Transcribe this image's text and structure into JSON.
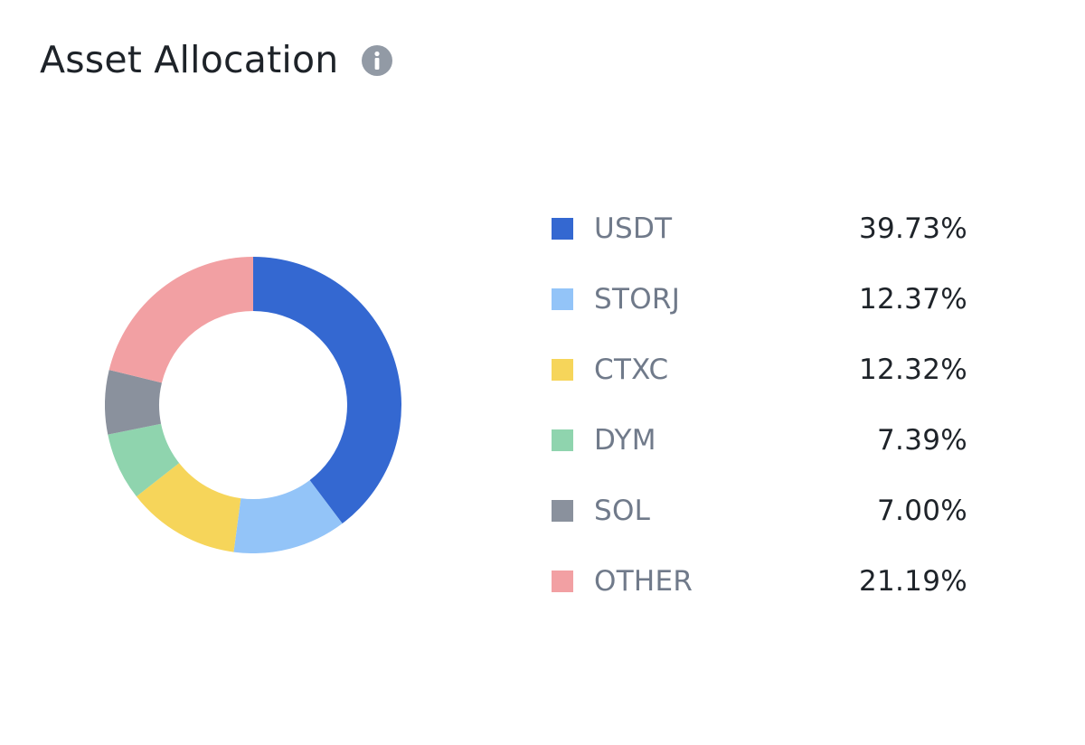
{
  "header": {
    "title": "Asset Allocation",
    "info_icon": "info-icon"
  },
  "colors": {
    "info_icon": "#929aa5",
    "hole": "#ffffff"
  },
  "chart_data": {
    "type": "pie",
    "donut": true,
    "legend_placement": "right",
    "categories": [
      "USDT",
      "STORJ",
      "CTXC",
      "DYM",
      "SOL",
      "OTHER"
    ],
    "values": [
      39.73,
      12.37,
      12.32,
      7.39,
      7.0,
      21.19
    ],
    "value_labels": [
      "39.73%",
      "12.37%",
      "12.32%",
      "7.39%",
      "7.00%",
      "21.19%"
    ],
    "colors": [
      "#3468d1",
      "#93c4f8",
      "#f6d55a",
      "#8fd4ae",
      "#8a919d",
      "#f2a0a3"
    ]
  }
}
